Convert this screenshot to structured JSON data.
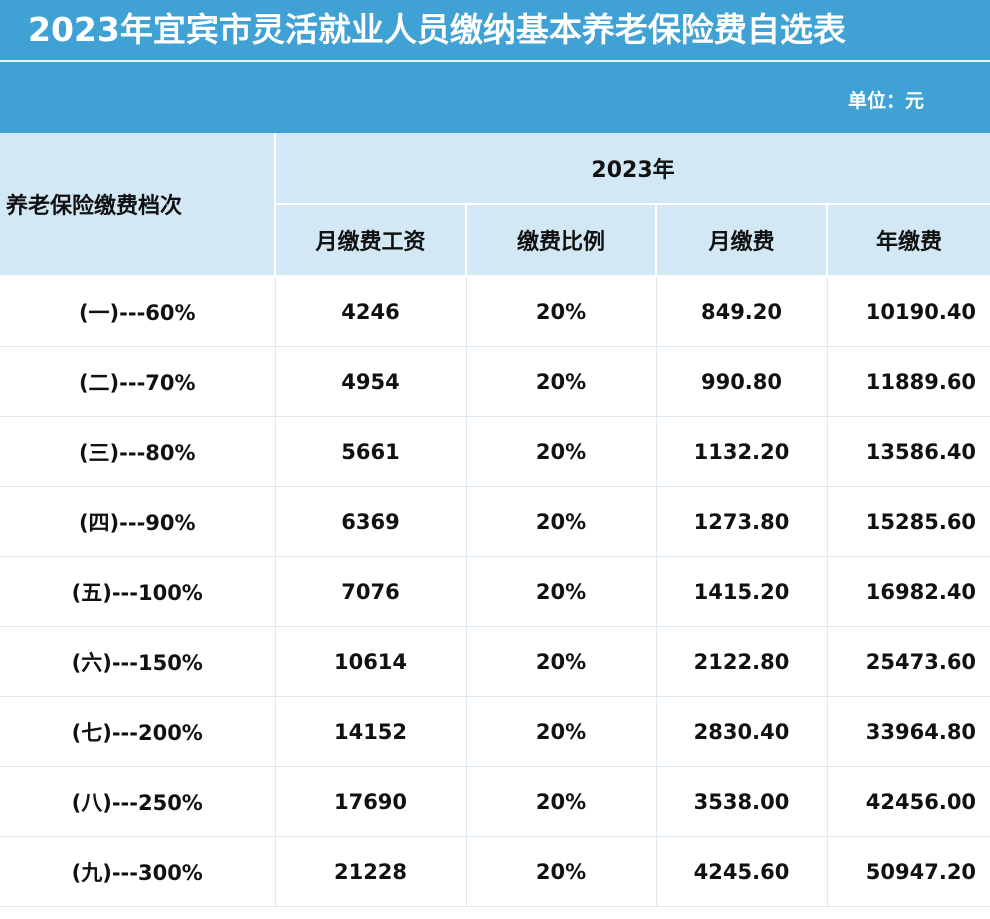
{
  "title": "2023年宜宾市灵活就业人员缴纳基本养老保险费自选表",
  "unit": "单位：元",
  "header": {
    "level_label": "养老保险缴费档次",
    "year_label": "2023年",
    "columns": [
      "月缴费工资",
      "缴费比例",
      "月缴费",
      "年缴费"
    ]
  },
  "rows": [
    {
      "level": "(一)---60%",
      "wage": "4246",
      "rate": "20%",
      "monthly": "849.20",
      "annual": "10190.40"
    },
    {
      "level": "(二)---70%",
      "wage": "4954",
      "rate": "20%",
      "monthly": "990.80",
      "annual": "11889.60"
    },
    {
      "level": "(三)---80%",
      "wage": "5661",
      "rate": "20%",
      "monthly": "1132.20",
      "annual": "13586.40"
    },
    {
      "level": "(四)---90%",
      "wage": "6369",
      "rate": "20%",
      "monthly": "1273.80",
      "annual": "15285.60"
    },
    {
      "level": "(五)---100%",
      "wage": "7076",
      "rate": "20%",
      "monthly": "1415.20",
      "annual": "16982.40"
    },
    {
      "level": "(六)---150%",
      "wage": "10614",
      "rate": "20%",
      "monthly": "2122.80",
      "annual": "25473.60"
    },
    {
      "level": "(七)---200%",
      "wage": "14152",
      "rate": "20%",
      "monthly": "2830.40",
      "annual": "33964.80"
    },
    {
      "level": "(八)---250%",
      "wage": "17690",
      "rate": "20%",
      "monthly": "3538.00",
      "annual": "42456.00"
    },
    {
      "level": "(九)---300%",
      "wage": "21228",
      "rate": "20%",
      "monthly": "4245.60",
      "annual": "50947.20"
    }
  ],
  "colors": {
    "title_bg": "#3fa1d4",
    "header_bg": "#d2e8f5",
    "grid": "#dce9f1"
  }
}
